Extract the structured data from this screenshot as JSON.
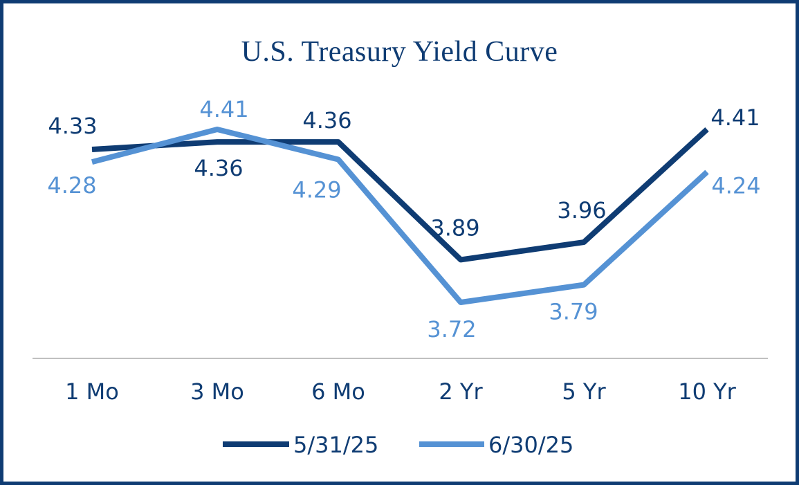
{
  "chart_data": {
    "type": "line",
    "title": "U.S. Treasury Yield Curve",
    "categories": [
      "1 Mo",
      "3 Mo",
      "6 Mo",
      "2 Yr",
      "5 Yr",
      "10 Yr"
    ],
    "series": [
      {
        "name": "5/31/25",
        "values": [
          4.33,
          4.36,
          4.36,
          3.89,
          3.96,
          4.41
        ],
        "labels": [
          "4.33",
          "4.36",
          "4.36",
          "3.89",
          "3.96",
          "4.41"
        ],
        "color": "#0f3c73"
      },
      {
        "name": "6/30/25",
        "values": [
          4.28,
          4.41,
          4.29,
          3.72,
          3.79,
          4.24
        ],
        "labels": [
          "4.28",
          "4.41",
          "4.29",
          "3.72",
          "3.79",
          "4.24"
        ],
        "color": "#5592d4"
      }
    ],
    "legend_position": "bottom",
    "grid": false,
    "y_axis_visible": false
  },
  "colors": {
    "border": "#0f3c73",
    "axis_line": "#c0c0c0"
  }
}
